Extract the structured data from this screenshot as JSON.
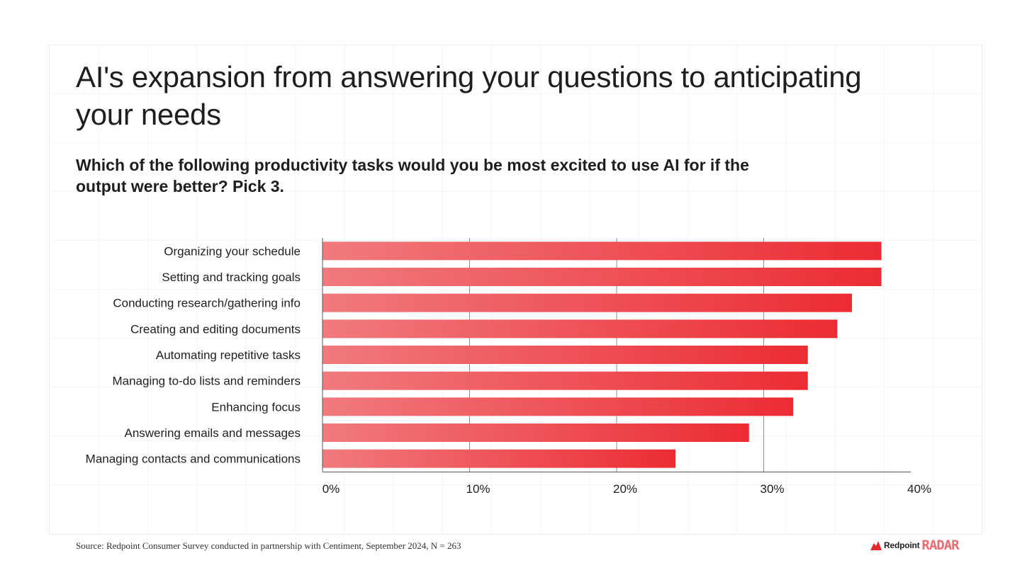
{
  "title": "AI's expansion from answering your questions to anticipating your needs",
  "subtitle": "Which of the following productivity tasks would you be most excited to use AI for if the output were better? Pick 3.",
  "source": "Source: Redpoint Consumer Survey conducted in partnership with Centiment, September 2024, N = 263",
  "brand": {
    "name": "Redpoint",
    "product": "RADAR"
  },
  "colors": {
    "bar_light": "#f07a7e",
    "bar_dark": "#ec2c33",
    "grid": "#eeeeee",
    "axis": "#555555"
  },
  "chart_data": {
    "type": "bar",
    "orientation": "horizontal",
    "categories": [
      "Organizing your schedule",
      "Setting and tracking goals",
      "Conducting research/gathering info",
      "Creating and editing documents",
      "Automating repetitive tasks",
      "Managing to-do lists and reminders",
      "Enhancing focus",
      "Answering emails and messages",
      "Managing contacts and communications"
    ],
    "values": [
      38,
      38,
      36,
      35,
      33,
      33,
      32,
      29,
      24
    ],
    "xlim": [
      0,
      40
    ],
    "xticks": [
      "0%",
      "10%",
      "20%",
      "30%",
      "40%"
    ],
    "grid": true
  }
}
